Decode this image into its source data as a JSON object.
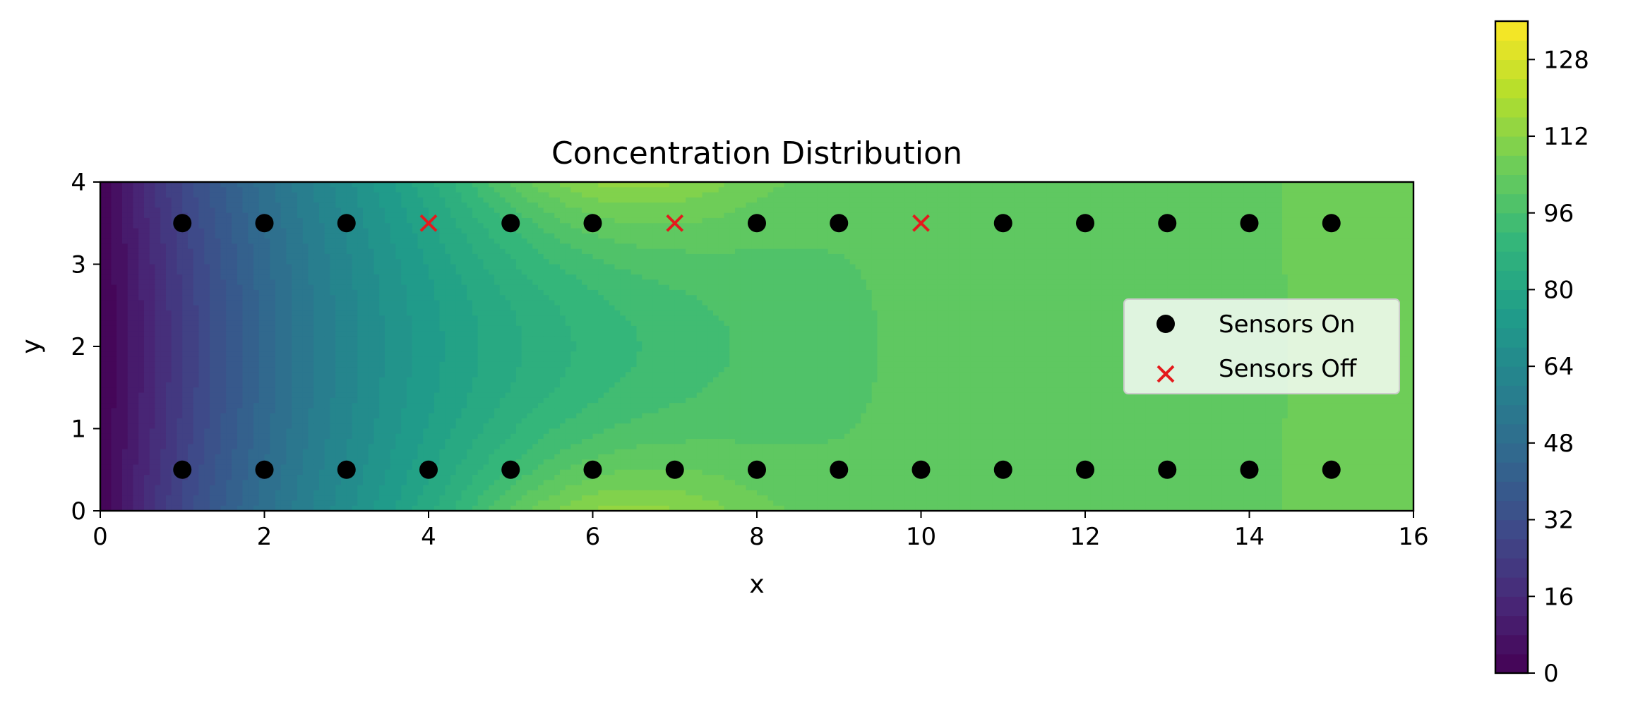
{
  "chart_data": {
    "type": "heatmap",
    "title": "Concentration Distribution",
    "xlabel": "x",
    "ylabel": "y",
    "xlim": [
      0,
      16
    ],
    "ylim": [
      0,
      4
    ],
    "x_ticks": [
      0,
      2,
      4,
      6,
      8,
      10,
      12,
      14,
      16
    ],
    "y_ticks": [
      0,
      1,
      2,
      3,
      4
    ],
    "colorbar": {
      "colormap": "viridis",
      "range": [
        0,
        136
      ],
      "ticks": [
        0,
        16,
        32,
        48,
        64,
        80,
        96,
        112,
        128
      ]
    },
    "contour_field": "filled contour of concentration; ~0 along x=0, rising with x; peaks ~130 near (6,0) and (6,4); plateau ~105 for x > 9",
    "legend": {
      "placement": "center-right",
      "entries": [
        {
          "label": "Sensors On",
          "marker": "circle",
          "color": "#000000"
        },
        {
          "label": "Sensors Off",
          "marker": "x",
          "color": "#e41a1c"
        }
      ]
    },
    "series": [
      {
        "name": "Sensors On",
        "points": [
          [
            1,
            3.5
          ],
          [
            2,
            3.5
          ],
          [
            3,
            3.5
          ],
          [
            5,
            3.5
          ],
          [
            6,
            3.5
          ],
          [
            8,
            3.5
          ],
          [
            9,
            3.5
          ],
          [
            11,
            3.5
          ],
          [
            12,
            3.5
          ],
          [
            13,
            3.5
          ],
          [
            14,
            3.5
          ],
          [
            15,
            3.5
          ],
          [
            1,
            0.5
          ],
          [
            2,
            0.5
          ],
          [
            3,
            0.5
          ],
          [
            4,
            0.5
          ],
          [
            5,
            0.5
          ],
          [
            6,
            0.5
          ],
          [
            7,
            0.5
          ],
          [
            8,
            0.5
          ],
          [
            9,
            0.5
          ],
          [
            10,
            0.5
          ],
          [
            11,
            0.5
          ],
          [
            12,
            0.5
          ],
          [
            13,
            0.5
          ],
          [
            14,
            0.5
          ],
          [
            15,
            0.5
          ]
        ]
      },
      {
        "name": "Sensors Off",
        "points": [
          [
            4,
            3.5
          ],
          [
            7,
            3.5
          ],
          [
            10,
            3.5
          ]
        ]
      }
    ]
  }
}
